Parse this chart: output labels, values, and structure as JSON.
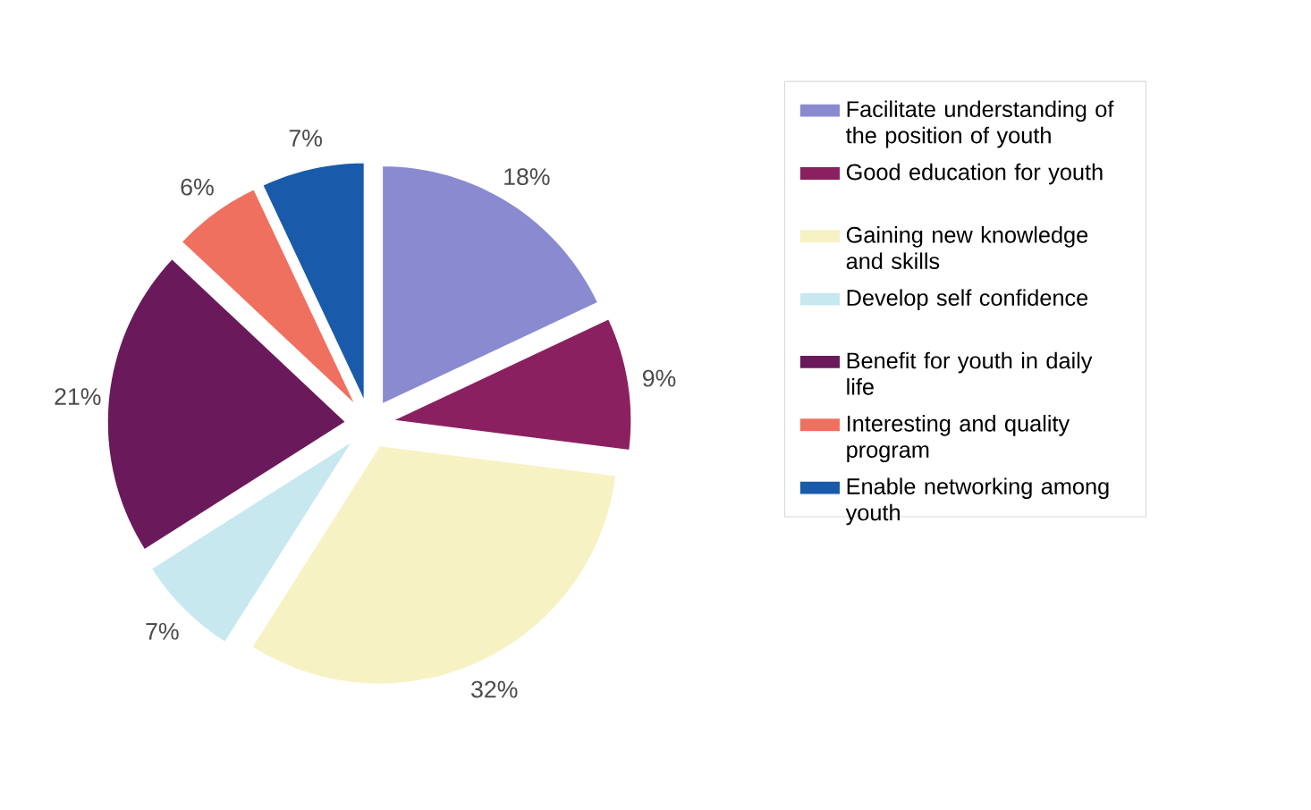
{
  "chart_data": {
    "type": "pie",
    "categories": [
      "Facilitate understanding of the position of youth",
      "Good education for youth",
      "Gaining new knowledge and skills",
      "Develop self confidence",
      "Benefit for youth in daily life",
      "Interesting and quality program",
      "Enable networking among youth"
    ],
    "values": [
      18,
      9,
      32,
      7,
      21,
      6,
      7
    ],
    "value_labels": [
      "18%",
      "9%",
      "32%",
      "7%",
      "21%",
      "6%",
      "7%"
    ],
    "colors": [
      "#8a8ad0",
      "#8b2060",
      "#f7f2c4",
      "#c8e8f0",
      "#6a1a5a",
      "#f07060",
      "#1a5aaa"
    ],
    "legend": "right"
  }
}
